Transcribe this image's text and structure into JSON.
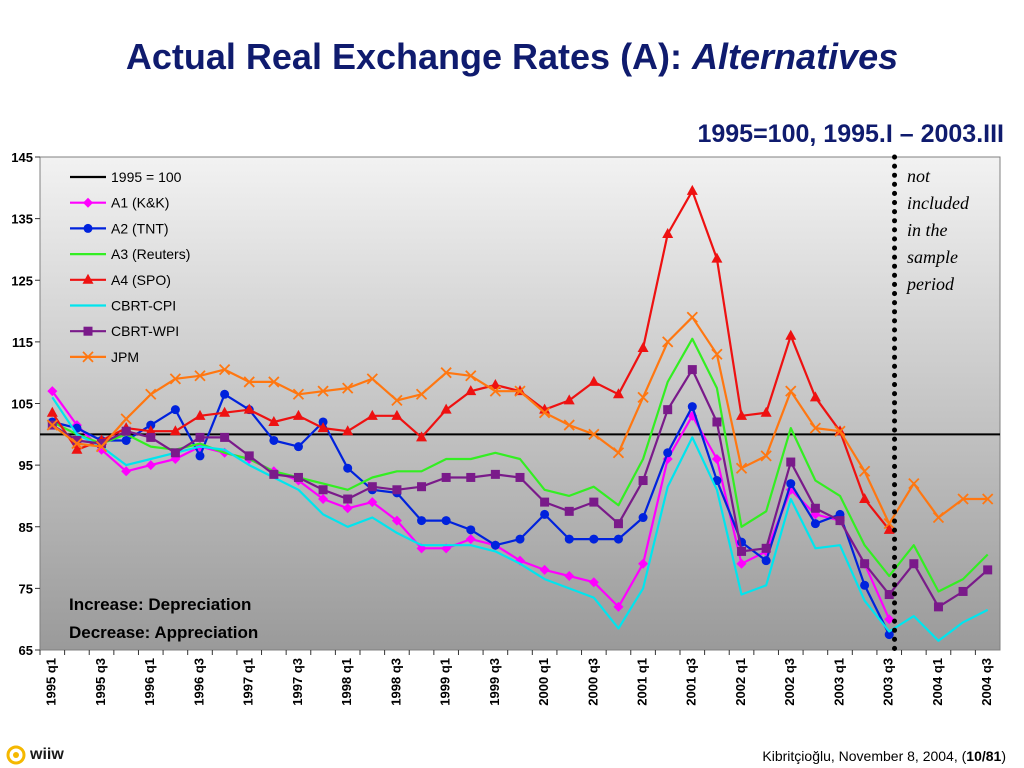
{
  "title": {
    "main": "Actual Real Exchange Rates (A): ",
    "emph": "Alternatives"
  },
  "subtitle": "1995=100, 1995.I – 2003.III",
  "footer": {
    "logo": "wiiw",
    "author": "Kibritçioğlu, November 8, 2004, (",
    "page": "10/81",
    "close": ")"
  },
  "chart_data": {
    "type": "line",
    "x": [
      "1995 q1",
      "1995 q2",
      "1995 q3",
      "1995 q4",
      "1996 q1",
      "1996 q2",
      "1996 q3",
      "1996 q4",
      "1997 q1",
      "1997 q2",
      "1997 q3",
      "1997 q4",
      "1998 q1",
      "1998 q2",
      "1998 q3",
      "1998 q4",
      "1999 q1",
      "1999 q2",
      "1999 q3",
      "1999 q4",
      "2000 q1",
      "2000 q2",
      "2000 q3",
      "2000 q4",
      "2001 q1",
      "2001 q2",
      "2001 q3",
      "2001 q4",
      "2002 q1",
      "2002 q2",
      "2002 q3",
      "2002 q4",
      "2003 q1",
      "2003 q2",
      "2003 q3",
      "2003 q4",
      "2004 q1",
      "2004 q2",
      "2004 q3"
    ],
    "xticklabels": [
      "1995 q1",
      "1995 q3",
      "1996 q1",
      "1996 q3",
      "1997 q1",
      "1997 q3",
      "1998 q1",
      "1998 q3",
      "1999 q1",
      "1999 q3",
      "2000 q1",
      "2000 q3",
      "2001 q1",
      "2001 q3",
      "2002 q1",
      "2002 q3",
      "2003 q1",
      "2003 q3",
      "2004 q1",
      "2004 q3"
    ],
    "ylim": [
      65,
      145
    ],
    "yticks": [
      65,
      75,
      85,
      95,
      105,
      115,
      125,
      135,
      145
    ],
    "reference_line": {
      "name": "1995 = 100",
      "value": 100,
      "color": "#000000"
    },
    "series": [
      {
        "name": "A1 (K&K)",
        "color": "#ff00ff",
        "marker": "diamond",
        "values": [
          107,
          101.5,
          97.5,
          94,
          95,
          96,
          98,
          97,
          96,
          94,
          92.5,
          89.5,
          88,
          89,
          86,
          81.5,
          81.5,
          83,
          82,
          79.5,
          78,
          77,
          76,
          72,
          79,
          96,
          103,
          96,
          79,
          81,
          91,
          87,
          86,
          79,
          70,
          null,
          null,
          null,
          null
        ]
      },
      {
        "name": "A2 (TNT)",
        "color": "#0022dd",
        "marker": "circle",
        "values": [
          102,
          101,
          99,
          99,
          101.5,
          104,
          96.5,
          106.5,
          104,
          99,
          98,
          102,
          94.5,
          91,
          90.5,
          86,
          86,
          84.5,
          82,
          83,
          87,
          83,
          83,
          83,
          86.5,
          97,
          104.5,
          92.5,
          82.5,
          79.5,
          92,
          85.5,
          87,
          75.5,
          67.5,
          null,
          null,
          null,
          null
        ]
      },
      {
        "name": "A3 (Reuters)",
        "color": "#33ee22",
        "marker": "none",
        "values": [
          102,
          100,
          98.5,
          100,
          98,
          97.5,
          98.5,
          97,
          96,
          94,
          93,
          92,
          91,
          93,
          94,
          94,
          96,
          96,
          97,
          96,
          91,
          90,
          91.5,
          88.5,
          96,
          108.5,
          115.5,
          107.5,
          85,
          87.5,
          101,
          92.5,
          90,
          82,
          77,
          82,
          74.5,
          76.5,
          80.5
        ]
      },
      {
        "name": "A4 (SPO)",
        "color": "#ee1111",
        "marker": "triangle",
        "values": [
          103.5,
          97.5,
          99,
          101,
          100.5,
          100.5,
          103,
          103.5,
          104,
          102,
          103,
          101,
          100.5,
          103,
          103,
          99.5,
          104,
          107,
          108,
          107,
          104,
          105.5,
          108.5,
          106.5,
          114,
          132.5,
          139.5,
          128.5,
          103,
          103.5,
          116,
          106,
          100.5,
          89.5,
          84.5,
          null,
          null,
          null,
          null
        ]
      },
      {
        "name": "CBRT-CPI",
        "color": "#00e5ee",
        "marker": "none",
        "values": [
          106,
          100,
          98,
          95,
          96,
          97,
          98,
          97.5,
          95,
          93,
          91,
          87,
          85,
          86.5,
          84,
          82,
          82,
          82,
          81,
          79,
          76.5,
          75,
          73.5,
          68.5,
          75,
          91.5,
          99.5,
          91,
          74,
          75.5,
          89.5,
          81.5,
          82,
          73,
          68,
          70.5,
          66.5,
          69.5,
          71.5
        ]
      },
      {
        "name": "CBRT-WPI",
        "color": "#7a1a8a",
        "marker": "square",
        "values": [
          101.5,
          99,
          98.5,
          100.5,
          99.5,
          97,
          99.5,
          99.5,
          96.5,
          93.5,
          93,
          91,
          89.5,
          91.5,
          91,
          91.5,
          93,
          93,
          93.5,
          93,
          89,
          87.5,
          89,
          85.5,
          92.5,
          104,
          110.5,
          102,
          81,
          81.5,
          95.5,
          88,
          86,
          79,
          74,
          79,
          72,
          74.5,
          78
        ]
      },
      {
        "name": "JPM",
        "color": "#ff7711",
        "marker": "x",
        "values": [
          101.5,
          98.5,
          98,
          102.5,
          106.5,
          109,
          109.5,
          110.5,
          108.5,
          108.5,
          106.5,
          107,
          107.5,
          109,
          105.5,
          106.5,
          110,
          109.5,
          107,
          107,
          103.5,
          101.5,
          100,
          97,
          106,
          115,
          119,
          113,
          94.5,
          96.5,
          107,
          101,
          100.5,
          94,
          85.5,
          92,
          86.5,
          89.5,
          89.5
        ]
      }
    ],
    "annotations": {
      "not_included": [
        "not",
        "included",
        "in the",
        "sample",
        "period"
      ],
      "cutoff_after": "2003 q3",
      "box_lines": [
        "Increase: Depreciation",
        "Decrease: Appreciation"
      ]
    },
    "legend_position": "top-left",
    "grid": false,
    "plot_background": "gradient-gray"
  }
}
